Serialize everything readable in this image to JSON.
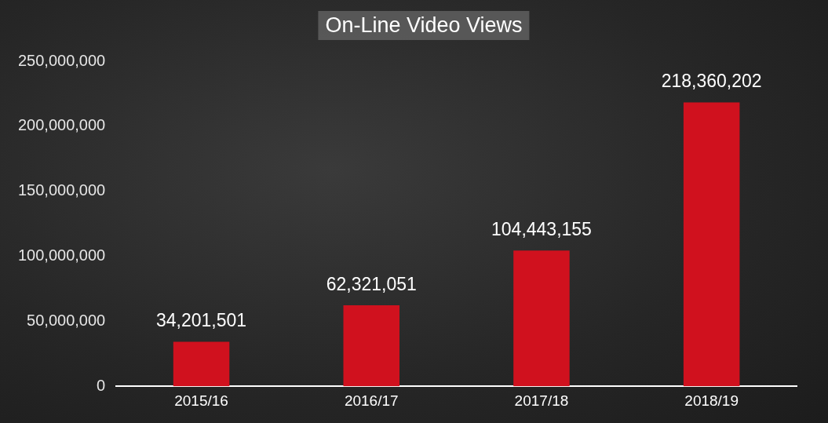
{
  "chart_data": {
    "type": "bar",
    "title": "On-Line Video Views",
    "categories": [
      "2015/16",
      "2016/17",
      "2017/18",
      "2018/19"
    ],
    "values": [
      34201501,
      62321051,
      104443155,
      218360202
    ],
    "value_labels": [
      "34,201,501",
      "62,321,051",
      "104,443,155",
      "218,360,202"
    ],
    "color": "#d0111e",
    "ylim": [
      0,
      250000000
    ],
    "yticks": [
      0,
      {
        "value": 50000000,
        "label": "50,000,000"
      },
      {
        "value": 100000000,
        "label": "100,000,000"
      },
      {
        "value": 150000000,
        "label": "150,000,000"
      },
      {
        "value": 200000000,
        "label": "200,000,000"
      },
      {
        "value": 250000000,
        "label": "250,000,000"
      }
    ],
    "grid": false,
    "data_labels": true
  }
}
